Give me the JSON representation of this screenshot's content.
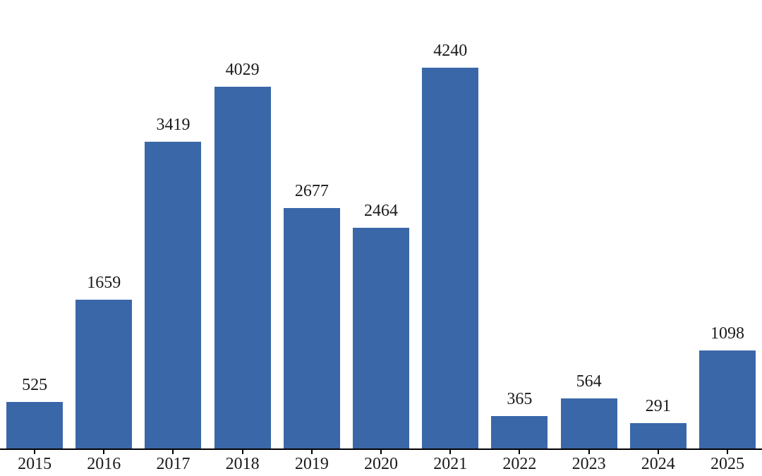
{
  "chart_data": {
    "type": "bar",
    "title": "",
    "xlabel": "",
    "ylabel": "",
    "categories": [
      "2015",
      "2016",
      "2017",
      "2018",
      "2019",
      "2020",
      "2021",
      "2022",
      "2023",
      "2024",
      "2025"
    ],
    "values": [
      525,
      1659,
      3419,
      4029,
      2677,
      2464,
      4240,
      365,
      564,
      291,
      1098
    ],
    "value_labels": [
      "525",
      "1659",
      "3419",
      "4029",
      "2677",
      "2464",
      "4240",
      "365",
      "564",
      "291",
      "1098"
    ],
    "ylim": [
      0,
      4500
    ],
    "grid": false,
    "legend": null,
    "bar_color": "#3a67a8",
    "axis_color": "#000000",
    "text_color": "#1a1a1a",
    "background_color": "#ffffff"
  }
}
